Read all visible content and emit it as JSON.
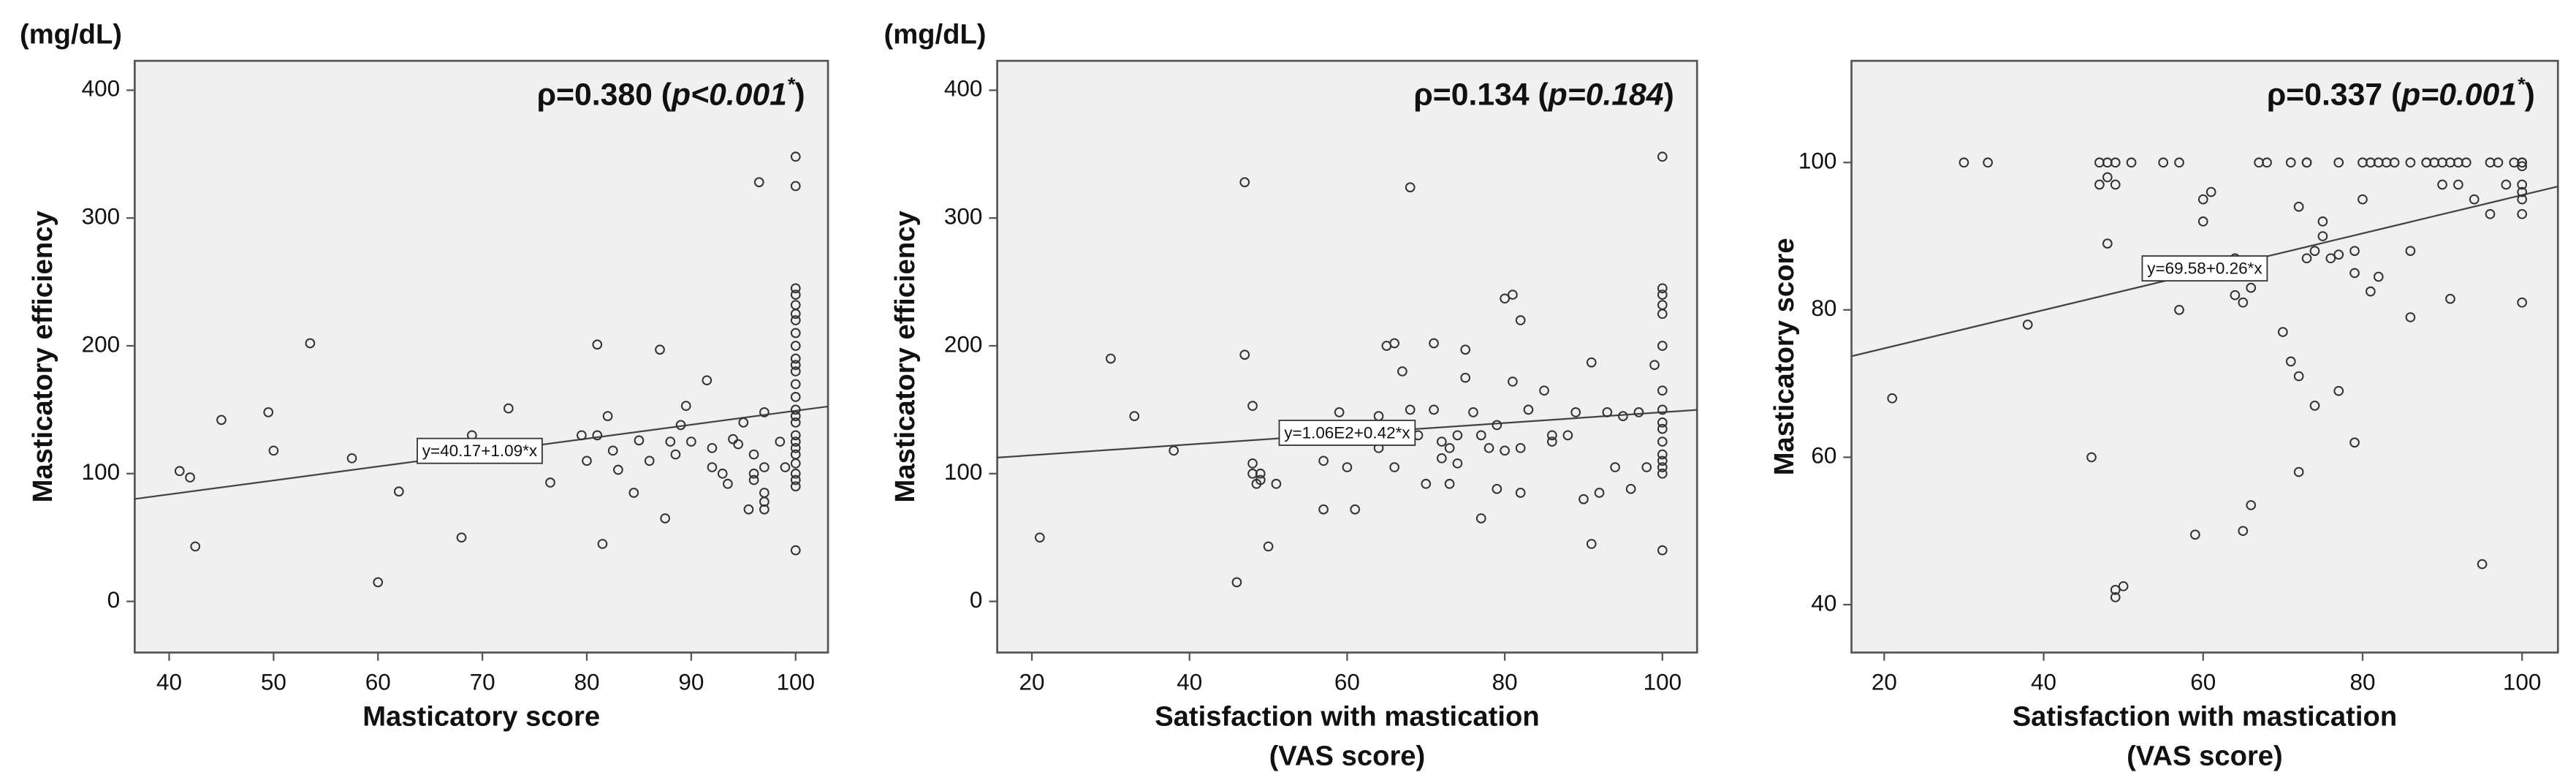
{
  "chart_data": [
    {
      "type": "scatter",
      "y_unit": "(mg/dL)",
      "xlabel": [
        "Masticatory score"
      ],
      "ylabel": "Masticatory  efficiency",
      "annotation": [
        {
          "text": "ρ=0.380 (",
          "style": "normal"
        },
        {
          "text": "p<0.001",
          "style": "italic"
        },
        {
          "text": "*",
          "style": "super"
        },
        {
          "text": ")",
          "style": "normal"
        }
      ],
      "fit": {
        "label": "y=40.17+1.09*x",
        "intercept": 40.17,
        "slope": 1.09
      },
      "xlim": [
        36.7,
        103.1
      ],
      "xticks": [
        40,
        50,
        60,
        70,
        80,
        90,
        100
      ],
      "ylim": [
        -40,
        423
      ],
      "yticks": [
        0,
        100,
        200,
        300,
        400
      ],
      "color": "#333333",
      "background": "#f0f0f0",
      "x": [
        41,
        42,
        42.5,
        45,
        49.5,
        50,
        53.5,
        57.5,
        60,
        62,
        68,
        69,
        72.5,
        76.5,
        79.5,
        80,
        81,
        81.5,
        82,
        82.5,
        83,
        84.5,
        85,
        87,
        87.5,
        88,
        88.5,
        89,
        89.5,
        90,
        91.5,
        92,
        93,
        93.5,
        94,
        94.5,
        95,
        95.5,
        96,
        96,
        96.5,
        97,
        97,
        97,
        97,
        98.5,
        99,
        100,
        100,
        100,
        100,
        100,
        100,
        100,
        100,
        100,
        100,
        100,
        100,
        100,
        100,
        100,
        100,
        100,
        100,
        100,
        100,
        100,
        100,
        100,
        100,
        100,
        100,
        97,
        96,
        92,
        86,
        81
      ],
      "y": [
        102,
        97,
        43,
        142,
        148,
        118,
        202,
        112,
        15,
        86,
        50,
        130,
        151,
        93,
        130,
        110,
        201,
        45,
        145,
        118,
        103,
        85,
        126,
        197,
        65,
        125,
        115,
        138,
        153,
        125,
        173,
        105,
        100,
        92,
        127,
        123,
        140,
        72,
        100,
        115,
        328,
        85,
        78,
        72,
        148,
        125,
        105,
        40,
        90,
        95,
        100,
        108,
        115,
        120,
        125,
        130,
        140,
        145,
        150,
        160,
        170,
        180,
        185,
        190,
        200,
        210,
        220,
        225,
        232,
        240,
        245,
        325,
        348,
        105,
        95,
        120,
        110,
        130
      ]
    },
    {
      "type": "scatter",
      "y_unit": "(mg/dL)",
      "xlabel": [
        "Satisfaction with mastication",
        "(VAS score)"
      ],
      "ylabel": "Masticatory  efficiency",
      "annotation": [
        {
          "text": "ρ=0.134 (",
          "style": "normal"
        },
        {
          "text": "p=0.184",
          "style": "italic"
        },
        {
          "text": ")",
          "style": "normal"
        }
      ],
      "fit": {
        "label": "y=1.06E2+0.42*x",
        "intercept": 106,
        "slope": 0.42
      },
      "xlim": [
        15.6,
        104.4
      ],
      "xticks": [
        20,
        40,
        60,
        80,
        100
      ],
      "ylim": [
        -40,
        423
      ],
      "yticks": [
        0,
        100,
        200,
        300,
        400
      ],
      "color": "#333333",
      "background": "#f0f0f0",
      "x": [
        21,
        30,
        33,
        38,
        46,
        47,
        47,
        48,
        48,
        48,
        48.5,
        49,
        49,
        50,
        51,
        57,
        57,
        59,
        60,
        61,
        62,
        64,
        64,
        65,
        66,
        66,
        67,
        68,
        68,
        69,
        70,
        71,
        71,
        72,
        72,
        73,
        73,
        74,
        74,
        75,
        75,
        76,
        77,
        77,
        78,
        79,
        79,
        80,
        80,
        81,
        81,
        82,
        82,
        82,
        83,
        85,
        86,
        86,
        88,
        89,
        90,
        91,
        91,
        92,
        93,
        94,
        95,
        96,
        97,
        98,
        99,
        100,
        100,
        100,
        100,
        100,
        100,
        100,
        100,
        100,
        100,
        100,
        100,
        100,
        100,
        100,
        100
      ],
      "y": [
        50,
        190,
        145,
        118,
        15,
        328,
        193,
        153,
        108,
        100,
        92,
        95,
        100,
        43,
        92,
        72,
        110,
        148,
        105,
        72,
        135,
        145,
        120,
        200,
        202,
        105,
        180,
        324,
        150,
        130,
        92,
        150,
        202,
        125,
        112,
        92,
        120,
        108,
        130,
        175,
        197,
        148,
        65,
        130,
        120,
        88,
        138,
        118,
        237,
        240,
        172,
        220,
        85,
        120,
        150,
        165,
        130,
        125,
        130,
        148,
        80,
        187,
        45,
        85,
        148,
        105,
        145,
        88,
        148,
        105,
        185,
        40,
        100,
        105,
        110,
        115,
        125,
        135,
        140,
        150,
        165,
        200,
        225,
        232,
        240,
        245,
        348
      ]
    },
    {
      "type": "scatter",
      "xlabel": [
        "Satisfaction with mastication",
        "(VAS score)"
      ],
      "ylabel": "Masticatory score",
      "annotation": [
        {
          "text": "ρ=0.337 (",
          "style": "normal"
        },
        {
          "text": "p=0.001",
          "style": "italic"
        },
        {
          "text": "*",
          "style": "super"
        },
        {
          "text": ")",
          "style": "normal"
        }
      ],
      "fit": {
        "label": "y=69.58+0.26*x",
        "intercept": 69.58,
        "slope": 0.26
      },
      "xlim": [
        15.9,
        104.5
      ],
      "xticks": [
        20,
        40,
        60,
        80,
        100
      ],
      "ylim": [
        33.5,
        113.8
      ],
      "yticks": [
        40,
        60,
        80,
        100
      ],
      "color": "#333333",
      "background": "#f0f0f0",
      "x": [
        21,
        30,
        33,
        38,
        46,
        47,
        47,
        48,
        48,
        48,
        49,
        49,
        49,
        49,
        50,
        51,
        55,
        57,
        57,
        60,
        60,
        61,
        59,
        63,
        64,
        64,
        65,
        65,
        66,
        66,
        67,
        68,
        70,
        71,
        71,
        72,
        72,
        72,
        73,
        73,
        73,
        74,
        74,
        75,
        75,
        76,
        77,
        77,
        77,
        79,
        79,
        79,
        80,
        80,
        81,
        81,
        82,
        82,
        83,
        84,
        86,
        86,
        86,
        88,
        89,
        90,
        90,
        91,
        91,
        92,
        93,
        94,
        95,
        96,
        96,
        97,
        98,
        99,
        100,
        100,
        100,
        100,
        100,
        100,
        100,
        100,
        92,
        88
      ],
      "y": [
        68,
        100,
        100,
        78,
        60,
        97,
        100,
        100,
        98,
        89,
        100,
        97,
        41,
        42,
        42.5,
        100,
        100,
        100,
        80,
        92,
        95,
        96,
        49.5,
        86,
        87,
        82,
        81,
        50,
        83,
        53.5,
        100,
        100,
        77,
        100,
        73,
        71,
        58,
        94,
        100,
        100,
        87,
        67,
        88,
        90,
        92,
        87,
        69,
        100,
        87.5,
        85,
        62,
        88,
        95,
        100,
        100,
        82.5,
        100,
        84.5,
        100,
        100,
        88,
        79,
        100,
        100,
        100,
        97,
        100,
        100,
        81.5,
        97,
        100,
        95,
        45.5,
        100,
        93,
        100,
        97,
        100,
        100,
        99.5,
        97,
        96,
        95,
        93,
        81,
        100,
        100,
        100
      ]
    }
  ]
}
